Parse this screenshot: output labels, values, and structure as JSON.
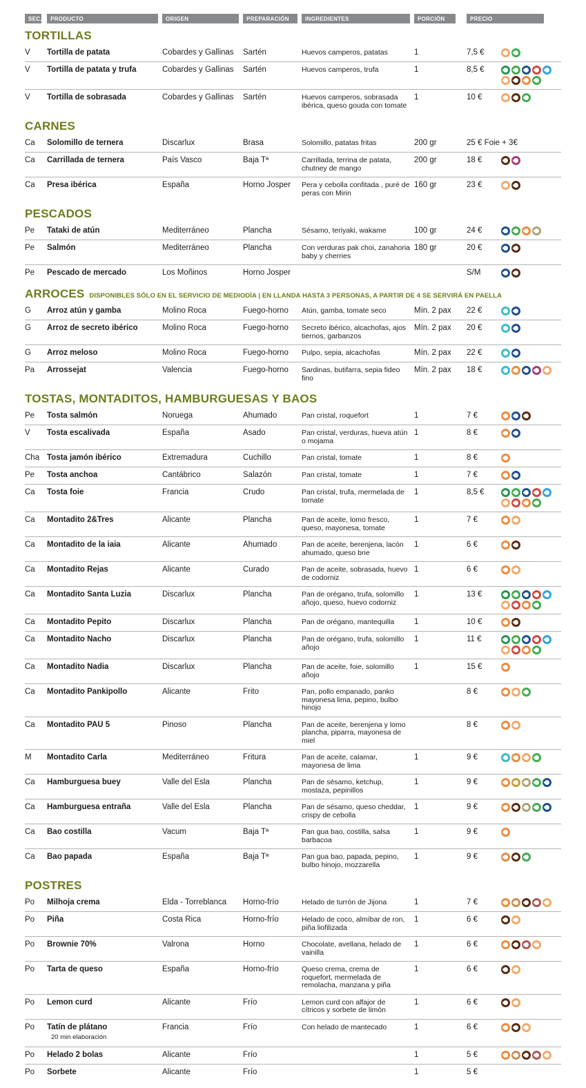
{
  "columns": [
    "SEC.",
    "PRODUCTO",
    "ORIGEN",
    "PREPARACIÓN",
    "INGREDIENTES",
    "PORCIÓN",
    "PRECIO"
  ],
  "palette": {
    "orange": "#EC8A3D",
    "peach": "#F2A868",
    "green": "#27934D",
    "lime": "#3FAD4E",
    "navy": "#1E4E90",
    "red": "#D4453C",
    "blue": "#2EA3DC",
    "brown": "#582A10",
    "magenta": "#A33C78",
    "teal": "#3EBAC8",
    "olive": "#ABA377",
    "mustard": "#C7A03A",
    "tan": "#C98E55",
    "maroon": "#B05656"
  },
  "title_color": "#6f7b1d",
  "header_bg": "#87898b",
  "sections": [
    {
      "title": "TORTILLAS",
      "note": "",
      "rows": [
        {
          "sec": "V",
          "product": "Tortilla de patata",
          "origin": "Cobardes y Gallinas",
          "prep": "Sartén",
          "ingredients": "Huevos camperos, patatas",
          "portion": "1",
          "price": "7,5 €",
          "icons": [
            "peach",
            "lime"
          ]
        },
        {
          "sec": "V",
          "product": "Tortilla de patata y trufa",
          "origin": "Cobardes y Gallinas",
          "prep": "Sartén",
          "ingredients": "Huevos camperos, trufa",
          "portion": "1",
          "price": "8,5 €",
          "icons": [
            "green",
            "lime",
            "navy",
            "red",
            "blue",
            "peach",
            "brown",
            "orange",
            "lime"
          ]
        },
        {
          "sec": "V",
          "product": "Tortilla de sobrasada",
          "origin": "Cobardes y Gallinas",
          "prep": "Sartén",
          "ingredients": "Huevos camperos, sobrasada ibérica, queso gouda con tomate",
          "portion": "1",
          "price": "10 €",
          "icons": [
            "peach",
            "brown",
            "lime"
          ]
        }
      ]
    },
    {
      "title": "CARNES",
      "note": "",
      "rows": [
        {
          "sec": "Ca",
          "product": "Solomillo de ternera",
          "origin": "Discarlux",
          "prep": "Brasa",
          "ingredients": "Solomillo,  patatas fritas",
          "portion": "200 gr",
          "price": "25 € Foie + 3€",
          "icons": []
        },
        {
          "sec": "Ca",
          "product": "Carrillada de ternera",
          "origin": "País Vasco",
          "prep": "Baja Tª",
          "ingredients": "Carrillada, terrina de patata, chutney de mango",
          "portion": "200 gr",
          "price": "18 €",
          "icons": [
            "brown",
            "magenta"
          ]
        },
        {
          "sec": "Ca",
          "product": "Presa ibérica",
          "origin": "España",
          "prep": "Horno Josper",
          "ingredients": "Pera y cebolla confitada , puré de peras con Mirin",
          "portion": "160 gr",
          "price": "23 €",
          "icons": [
            "peach",
            "brown"
          ]
        }
      ]
    },
    {
      "title": "PESCADOS",
      "note": "",
      "rows": [
        {
          "sec": "Pe",
          "product": "Tataki de atún",
          "origin": "Mediterráneo",
          "prep": "Plancha",
          "ingredients": "Sésamo, teriyaki, wakame",
          "portion": "100 gr",
          "price": "24 €",
          "icons": [
            "navy",
            "lime",
            "orange",
            "olive"
          ]
        },
        {
          "sec": "Pe",
          "product": "Salmón",
          "origin": "Mediterráneo",
          "prep": "Plancha",
          "ingredients": "Con verduras pak choi, zanahoria baby y cherries",
          "portion": "180 gr",
          "price": "20 €",
          "icons": [
            "navy",
            "brown"
          ]
        },
        {
          "sec": "Pe",
          "product": "Pescado de mercado",
          "origin": "Los Moñinos",
          "prep": "Horno Josper",
          "ingredients": "",
          "portion": "",
          "price": "S/M",
          "icons": [
            "navy",
            "brown"
          ]
        }
      ]
    },
    {
      "title": "ARROCES",
      "note": "DISPONIBLES SÓLO EN EL SERVICIO DE MEDIODÍA | EN LLANDA HASTA 3 PERSONAS, A PARTIR DE 4 SE SERVIRÁ EN PAELLA",
      "rows": [
        {
          "sec": "G",
          "product": "Arroz atún y gamba",
          "origin": "Molino Roca",
          "prep": "Fuego-horno",
          "ingredients": "Atún, gamba, tomate seco",
          "portion": "Mín. 2 pax",
          "price": "22 €",
          "icons": [
            "teal",
            "navy"
          ]
        },
        {
          "sec": "G",
          "product": "Arroz de secreto ibérico",
          "origin": "Molino Roca",
          "prep": "Fuego-horno",
          "ingredients": "Secreto ibérico, alcachofas, ajos tiernos, garbanzos",
          "portion": "Mín. 2 pax",
          "price": "20 €",
          "icons": [
            "teal",
            "navy"
          ]
        },
        {
          "sec": "G",
          "product": "Arroz meloso",
          "origin": "Molino Roca",
          "prep": "Fuego-horno",
          "ingredients": "Pulpo, sepia, alcachofas",
          "portion": "Mín. 2 pax",
          "price": "22 €",
          "icons": [
            "teal",
            "navy"
          ]
        },
        {
          "sec": "Pa",
          "product": "Arrossejat",
          "origin": "Valencia",
          "prep": "Fuego-horno",
          "ingredients": "Sardinas, butifarra, sepia fideo fino",
          "portion": "Mín. 2 pax",
          "price": "18 €",
          "icons": [
            "teal",
            "orange",
            "navy",
            "magenta",
            "peach"
          ]
        }
      ]
    },
    {
      "title": "TOSTAS, MONTADITOS, HAMBURGUESAS Y BAOS",
      "note": "",
      "rows": [
        {
          "sec": "Pe",
          "product": "Tosta salmón",
          "origin": "Noruega",
          "prep": "Ahumado",
          "ingredients": "Pan cristal, roquefort",
          "portion": "1",
          "price": "7 €",
          "icons": [
            "orange",
            "navy",
            "brown"
          ]
        },
        {
          "sec": "V",
          "product": "Tosta escalivada",
          "origin": "España",
          "prep": "Asado",
          "ingredients": "Pan cristal, verduras, hueva atún o mojama",
          "portion": "1",
          "price": "8 €",
          "icons": [
            "orange",
            "navy"
          ]
        },
        {
          "sec": "Cha",
          "product": "Tosta jamón ibérico",
          "origin": "Extremadura",
          "prep": "Cuchillo",
          "ingredients": "Pan cristal, tomate",
          "portion": "1",
          "price": "8 €",
          "icons": [
            "orange"
          ]
        },
        {
          "sec": "Pe",
          "product": "Tosta anchoa",
          "origin": "Cantábrico",
          "prep": "Salazón",
          "ingredients": "Pan cristal, tomate",
          "portion": "1",
          "price": "7 €",
          "icons": [
            "orange",
            "navy"
          ]
        },
        {
          "sec": "Ca",
          "product": "Tosta foie",
          "origin": "Francia",
          "prep": "Crudo",
          "ingredients": "Pan cristal, trufa, mermelada de tomate",
          "portion": "1",
          "price": "8,5 €",
          "icons": [
            "green",
            "lime",
            "navy",
            "red",
            "blue",
            "peach",
            "red",
            "orange",
            "lime"
          ]
        },
        {
          "sec": "Ca",
          "product": "Montadito 2&Tres",
          "origin": "Alicante",
          "prep": "Plancha",
          "ingredients": "Pan de aceite, lomo fresco, queso, mayonesa, tomate",
          "portion": "1",
          "price": "7 €",
          "icons": [
            "orange",
            "peach"
          ]
        },
        {
          "sec": "Ca",
          "product": "Montadito de la iaia",
          "origin": "Alicante",
          "prep": "Ahumado",
          "ingredients": "Pan de aceite, berenjena, lacón ahumado, queso brie",
          "portion": "1",
          "price": "6 €",
          "icons": [
            "orange",
            "brown"
          ]
        },
        {
          "sec": "Ca",
          "product": "Montadito Rejas",
          "origin": "Alicante",
          "prep": "Curado",
          "ingredients": "Pan de aceite, sobrasada, huevo de codorniz",
          "portion": "1",
          "price": "6 €",
          "icons": [
            "orange",
            "peach"
          ]
        },
        {
          "sec": "Ca",
          "product": "Montadito Santa Luzia",
          "origin": "Discarlux",
          "prep": "Plancha",
          "ingredients": "Pan de orégano, trufa, solomillo añojo, queso, huevo codorniz",
          "portion": "1",
          "price": "13 €",
          "icons": [
            "green",
            "lime",
            "navy",
            "red",
            "blue",
            "peach",
            "red",
            "orange",
            "lime"
          ]
        },
        {
          "sec": "Ca",
          "product": "Montadito Pepito",
          "origin": "Discarlux",
          "prep": "Plancha",
          "ingredients": "Pan de orégano, mantequilla",
          "portion": "1",
          "price": "10 €",
          "icons": [
            "orange",
            "brown"
          ]
        },
        {
          "sec": "Ca",
          "product": "Montadito Nacho",
          "origin": "Discarlux",
          "prep": "Plancha",
          "ingredients": "Pan de orégano, trufa, solomillo añojo",
          "portion": "1",
          "price": "11 €",
          "icons": [
            "green",
            "lime",
            "navy",
            "red",
            "blue",
            "peach",
            "red",
            "orange",
            "lime"
          ]
        },
        {
          "sec": "Ca",
          "product": "Montadito Nadia",
          "origin": "Discarlux",
          "prep": "Plancha",
          "ingredients": "Pan de aceite, foie, solomillo añojo",
          "portion": "1",
          "price": "15 €",
          "icons": [
            "orange"
          ]
        },
        {
          "sec": "Ca",
          "product": "Montadito Pankipollo",
          "origin": "Alicante",
          "prep": "Frito",
          "ingredients": "Pan, pollo empanado, panko mayonesa lima, pepino, bulbo hinojo",
          "portion": "",
          "price": "8 €",
          "icons": [
            "orange",
            "peach",
            "lime"
          ]
        },
        {
          "sec": "Ca",
          "product": "Montadito PAU 5",
          "origin": "Pinoso",
          "prep": "Plancha",
          "ingredients": "Pan de aceite, berenjena y lomo plancha, piparra, mayonesa de miel",
          "portion": "",
          "price": "8 €",
          "icons": [
            "orange",
            "peach"
          ]
        },
        {
          "sec": "M",
          "product": "Montadito Carla",
          "origin": "Mediterráneo",
          "prep": "Fritura",
          "ingredients": "Pan de aceite, calamar, mayonesa de lima",
          "portion": "1",
          "price": "9 €",
          "icons": [
            "teal",
            "orange",
            "peach",
            "lime"
          ]
        },
        {
          "sec": "Ca",
          "product": "Hamburguesa buey",
          "origin": "Valle del Esla",
          "prep": "Plancha",
          "ingredients": "Pan de sésamo, ketchup, mostaza, pepinillos",
          "portion": "1",
          "price": "9 €",
          "icons": [
            "orange",
            "mustard",
            "olive",
            "lime",
            "navy"
          ]
        },
        {
          "sec": "Ca",
          "product": "Hamburguesa entraña",
          "origin": "Valle del Esla",
          "prep": "Plancha",
          "ingredients": "Pan de sésamo, queso cheddar, crispy de cebolla",
          "portion": "1",
          "price": "9 €",
          "icons": [
            "orange",
            "brown",
            "olive",
            "lime",
            "navy"
          ]
        },
        {
          "sec": "Ca",
          "product": "Bao costilla",
          "origin": "Vacum",
          "prep": "Baja Tª",
          "ingredients": "Pan gua bao, costilla, salsa barbacoa",
          "portion": "1",
          "price": "9 €",
          "icons": [
            "orange"
          ]
        },
        {
          "sec": "Ca",
          "product": "Bao papada",
          "origin": "España",
          "prep": "Baja Tª",
          "ingredients": "Pan gua bao, papada, pepino, bulbo hinojo, mozzarella",
          "portion": "1",
          "price": "9 €",
          "icons": [
            "orange",
            "brown",
            "lime"
          ]
        }
      ]
    },
    {
      "title": "POSTRES",
      "note": "",
      "rows": [
        {
          "sec": "Po",
          "product": "Milhoja crema",
          "origin": "Elda - Torreblanca",
          "prep": "Horno-frío",
          "ingredients": "Helado de turrón de Jijona",
          "portion": "1",
          "price": "7 €",
          "icons": [
            "orange",
            "tan",
            "brown",
            "maroon",
            "peach"
          ]
        },
        {
          "sec": "Po",
          "product": "Piña",
          "origin": "Costa Rica",
          "prep": "Horno-frío",
          "ingredients": "Helado de coco, almíbar de ron, piña liofilizada",
          "portion": "1",
          "price": "6 €",
          "icons": [
            "brown",
            "peach"
          ]
        },
        {
          "sec": "Po",
          "product": "Brownie 70%",
          "origin": "Valrona",
          "prep": "Horno",
          "ingredients": "Chocolate, avellana, helado de vainilla",
          "portion": "1",
          "price": "6 €",
          "icons": [
            "orange",
            "brown",
            "maroon",
            "peach"
          ]
        },
        {
          "sec": "Po",
          "product": "Tarta de queso",
          "origin": "España",
          "prep": "Horno-frío",
          "ingredients": "Queso crema, crema de roquefort, mermelada de remolacha, manzana y piña",
          "portion": "1",
          "price": "6 €",
          "icons": [
            "brown",
            "peach"
          ]
        },
        {
          "sec": "Po",
          "product": "Lemon curd",
          "origin": "Alicante",
          "prep": "Frío",
          "ingredients": "Lemon curd con alfajor de cítricos y sorbete de limón",
          "portion": "1",
          "price": "6 €",
          "icons": [
            "brown",
            "peach"
          ]
        },
        {
          "sec": "Po",
          "product": "Tatín de plátano",
          "note": "20 min elaboración",
          "origin": "Francia",
          "prep": "Frío",
          "ingredients": "Con helado de mantecado",
          "portion": "1",
          "price": "6 €",
          "icons": [
            "orange",
            "brown",
            "peach"
          ]
        },
        {
          "sec": "Po",
          "product": "Helado 2 bolas",
          "origin": "Alicante",
          "prep": "Frío",
          "ingredients": "",
          "portion": "1",
          "price": "5 €",
          "icons": [
            "orange",
            "tan",
            "brown",
            "maroon",
            "peach"
          ]
        },
        {
          "sec": "Po",
          "product": "Sorbete",
          "origin": "Alicante",
          "prep": "Frío",
          "ingredients": "",
          "portion": "1",
          "price": "5 €",
          "icons": []
        }
      ]
    }
  ]
}
